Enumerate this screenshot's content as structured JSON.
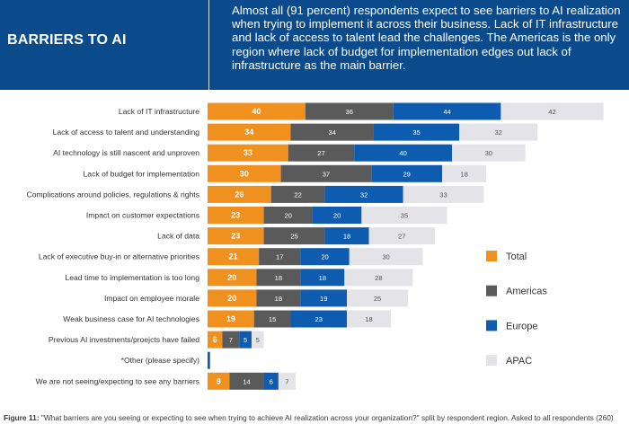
{
  "header": {
    "title": "BARRIERS TO AI",
    "text": "Almost all (91 percent) respondents expect to see barriers to AI realization when trying to implement it across their business. Lack of IT infrastructure and lack of access to talent lead the challenges. The Americas is the only region where lack of budget for implementation edges out lack of infrastructure as the main barrier."
  },
  "caption": {
    "label": "Figure 11:",
    "text": " \"What barriers are you seeing or expecting to see when trying to achieve AI realization across your organization?\" split by respondent region. Asked to all respondents (260)"
  },
  "chart_data": {
    "type": "bar",
    "orientation": "horizontal",
    "stacked": true,
    "categories": [
      "Lack of IT infrastructure",
      "Lack of access to talent and understanding",
      "AI technology is still nascent and unproven",
      "Lack of budget for implementation",
      "Complications around policies, regulations & rights",
      "Impact on customer expectations",
      "Lack of data",
      "Lack of executive buy-in or alternative priorities",
      "Lead time to implementation is too long",
      "Impact on employee morale",
      "Weak business case for AI technologies",
      "Previous AI investments/proejcts have failed",
      "*Other (please specify)",
      "We are not seeing/expecting to see any barriers"
    ],
    "series": [
      {
        "name": "Total",
        "color": "#f0901e",
        "values": [
          40,
          34,
          33,
          30,
          26,
          23,
          23,
          21,
          20,
          20,
          19,
          6,
          0,
          9
        ],
        "labels": [
          "40",
          "34",
          "33",
          "30",
          "26",
          "23",
          "23",
          "21",
          "20",
          "20",
          "19",
          "6",
          "",
          "9"
        ]
      },
      {
        "name": "Americas",
        "color": "#5a5a5a",
        "values": [
          36,
          34,
          27,
          37,
          22,
          20,
          25,
          17,
          18,
          18,
          15,
          7,
          0,
          14
        ],
        "labels": [
          "36",
          "34",
          "27",
          "37",
          "22",
          "20",
          "25",
          "17",
          "18",
          "18",
          "15",
          "7",
          "",
          "14"
        ]
      },
      {
        "name": "Europe",
        "color": "#0d5cb0",
        "values": [
          44,
          35,
          40,
          29,
          32,
          20,
          18,
          20,
          18,
          19,
          23,
          5,
          1,
          6
        ],
        "labels": [
          "44",
          "35",
          "40",
          "29",
          "32",
          "20",
          "18",
          "20",
          "18",
          "19",
          "23",
          "5",
          "",
          "6"
        ]
      },
      {
        "name": "APAC",
        "color": "#e3e3e8",
        "values": [
          42,
          32,
          30,
          18,
          33,
          35,
          27,
          30,
          28,
          25,
          18,
          5,
          0,
          7
        ],
        "labels": [
          "42",
          "32",
          "30",
          "18",
          "33",
          "35",
          "27",
          "30",
          "28",
          "25",
          "18",
          "5",
          "",
          "7"
        ]
      }
    ],
    "bold_label_series": [
      "Total"
    ],
    "legend_position": "right",
    "grid": false
  }
}
